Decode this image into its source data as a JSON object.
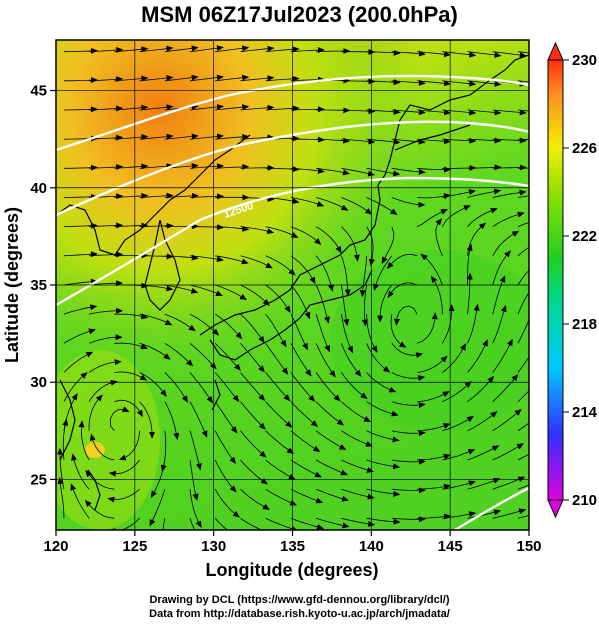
{
  "title": "MSM 06Z17Jul2023 (200.0hPa)",
  "credits": {
    "line1": "Drawing by DCL (https://www.gfd-dennou.org/library/dcl/)",
    "line2": "Data from http://database.rish.kyoto-u.ac.jp/arch/jmadata/"
  },
  "chart_data": {
    "type": "heatmap",
    "xlabel": "Longitude (degrees)",
    "ylabel": "Latitude  (degrees)",
    "xlim": [
      120,
      150
    ],
    "ylim": [
      22.4,
      47.6
    ],
    "xticks": [
      120,
      125,
      130,
      135,
      140,
      145,
      150
    ],
    "yticks": [
      25,
      30,
      35,
      40,
      45
    ],
    "grid": true,
    "colorbar": {
      "min": 210,
      "max": 230,
      "ticks": [
        230,
        226,
        222,
        218,
        214,
        210
      ],
      "extend": "both"
    },
    "contour_labels": [
      "12500"
    ],
    "overlay": "wind streamlines"
  }
}
